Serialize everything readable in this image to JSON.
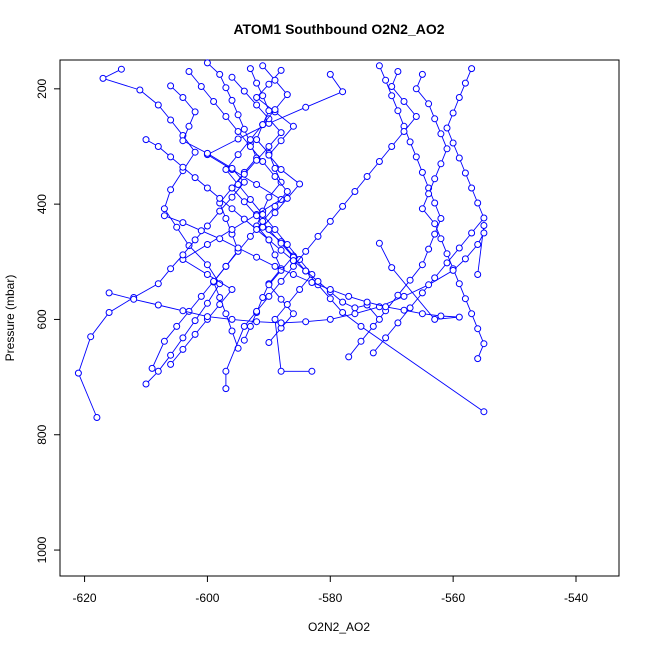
{
  "chart_data": {
    "type": "line",
    "title": "ATOM1 Southbound O2N2_AO2",
    "xlabel": "O2N2_AO2",
    "ylabel": "Pressure (mbar)",
    "xlim": [
      -624,
      -533
    ],
    "ylim": [
      1045,
      150
    ],
    "y_reversed": true,
    "x_ticks": [
      -620,
      -600,
      -580,
      -560,
      -540
    ],
    "y_ticks": [
      200,
      400,
      600,
      800,
      1000
    ],
    "grid": false,
    "series_color": "#0000ff",
    "series": [
      {
        "x": [
          -614,
          -617,
          -611,
          -608,
          -606,
          -604,
          -602,
          -604,
          -606,
          -607,
          -605,
          -603,
          -600,
          -598,
          -600,
          -602,
          -604,
          -606,
          -608,
          -610
        ],
        "y": [
          166,
          182,
          202,
          228,
          254,
          281,
          310,
          342,
          375,
          408,
          440,
          472,
          505,
          538,
          572,
          602,
          632,
          662,
          690,
          712
        ]
      },
      {
        "x": [
          -600,
          -598,
          -597,
          -596,
          -595,
          -594,
          -593,
          -592,
          -594,
          -596,
          -598,
          -597,
          -596,
          -595,
          -597,
          -599,
          -598,
          -597,
          -596,
          -595
        ],
        "y": [
          155,
          175,
          198,
          220,
          245,
          270,
          295,
          320,
          345,
          372,
          398,
          425,
          452,
          480,
          508,
          535,
          562,
          590,
          620,
          650
        ]
      },
      {
        "x": [
          -593,
          -592,
          -591,
          -590,
          -591,
          -592,
          -590,
          -589,
          -588,
          -590,
          -591,
          -592,
          -590,
          -589,
          -588,
          -590,
          -591,
          -592,
          -593,
          -594
        ],
        "y": [
          165,
          190,
          212,
          238,
          262,
          288,
          312,
          338,
          362,
          388,
          412,
          438,
          462,
          488,
          512,
          538,
          562,
          588,
          612,
          636
        ]
      },
      {
        "x": [
          -588,
          -590,
          -592,
          -589,
          -586,
          -588,
          -590,
          -588,
          -585,
          -587,
          -589,
          -591,
          -588,
          -586,
          -588,
          -590,
          -588,
          -586,
          -588,
          -590
        ],
        "y": [
          168,
          192,
          215,
          240,
          265,
          290,
          315,
          340,
          365,
          390,
          415,
          440,
          465,
          490,
          515,
          540,
          565,
          590,
          615,
          640
        ]
      },
      {
        "x": [
          -580,
          -578,
          -584,
          -590,
          -595,
          -600,
          -596,
          -592,
          -588,
          -592,
          -596,
          -600,
          -604,
          -600,
          -596,
          -598,
          -600,
          -602,
          -604,
          -606
        ],
        "y": [
          175,
          205,
          232,
          260,
          287,
          314,
          340,
          366,
          392,
          418,
          444,
          470,
          496,
          522,
          548,
          574,
          600,
          626,
          652,
          678
        ]
      },
      {
        "x": [
          -572,
          -571,
          -570,
          -569,
          -568,
          -567,
          -566,
          -565,
          -564,
          -563,
          -562,
          -563,
          -564,
          -565,
          -567,
          -569,
          -571,
          -573,
          -575,
          -577
        ],
        "y": [
          160,
          185,
          212,
          238,
          265,
          292,
          318,
          345,
          372,
          398,
          425,
          452,
          478,
          505,
          532,
          558,
          585,
          612,
          638,
          665
        ]
      },
      {
        "x": [
          -565,
          -566,
          -564,
          -563,
          -562,
          -561,
          -562,
          -563,
          -564,
          -565,
          -563,
          -562,
          -561,
          -560,
          -559,
          -558,
          -557,
          -556,
          -555,
          -556
        ],
        "y": [
          175,
          200,
          226,
          252,
          278,
          304,
          330,
          356,
          382,
          408,
          434,
          460,
          486,
          512,
          538,
          564,
          590,
          616,
          642,
          668
        ]
      },
      {
        "x": [
          -557,
          -558,
          -559,
          -560,
          -561,
          -560,
          -559,
          -558,
          -557,
          -556,
          -555,
          -557,
          -559,
          -561,
          -563,
          -565,
          -567,
          -569,
          -571,
          -573
        ],
        "y": [
          165,
          190,
          215,
          242,
          268,
          294,
          320,
          346,
          372,
          398,
          424,
          450,
          476,
          502,
          528,
          554,
          580,
          606,
          632,
          658
        ]
      },
      {
        "x": [
          -606,
          -604,
          -602,
          -603,
          -604,
          -600,
          -596,
          -594,
          -596,
          -598,
          -600,
          -602,
          -604,
          -606,
          -608,
          -612,
          -616,
          -619,
          -621,
          -618
        ],
        "y": [
          195,
          215,
          240,
          265,
          290,
          312,
          338,
          362,
          388,
          412,
          438,
          462,
          488,
          512,
          538,
          562,
          588,
          630,
          693,
          770
        ]
      },
      {
        "x": [
          -596,
          -594,
          -592,
          -590,
          -588,
          -590,
          -592,
          -594,
          -596,
          -594,
          -592,
          -590,
          -588,
          -586,
          -584,
          -582,
          -580,
          -578,
          -575,
          -555
        ],
        "y": [
          180,
          204,
          228,
          252,
          276,
          300,
          324,
          348,
          372,
          396,
          420,
          444,
          468,
          492,
          516,
          540,
          564,
          588,
          612,
          760
        ]
      },
      {
        "x": [
          -603,
          -601,
          -599,
          -597,
          -595,
          -593,
          -591,
          -589,
          -587,
          -589,
          -591,
          -593,
          -595,
          -597,
          -599,
          -601,
          -603,
          -605,
          -607,
          -609
        ],
        "y": [
          170,
          196,
          222,
          248,
          274,
          300,
          326,
          352,
          378,
          404,
          430,
          456,
          482,
          508,
          534,
          560,
          586,
          612,
          638,
          685
        ]
      },
      {
        "x": [
          -591,
          -589,
          -587,
          -589,
          -591,
          -593,
          -595,
          -597,
          -595,
          -593,
          -591,
          -589,
          -587,
          -585,
          -583,
          -585,
          -587,
          -589,
          -588,
          -583
        ],
        "y": [
          160,
          185,
          210,
          236,
          262,
          288,
          314,
          340,
          366,
          392,
          418,
          444,
          470,
          496,
          522,
          548,
          574,
          600,
          690,
          690
        ]
      },
      {
        "x": [
          -569,
          -570,
          -568,
          -566,
          -568,
          -570,
          -572,
          -574,
          -576,
          -578,
          -580,
          -582,
          -584,
          -586,
          -588,
          -590,
          -592,
          -594,
          -597,
          -597
        ],
        "y": [
          170,
          196,
          222,
          248,
          274,
          300,
          326,
          352,
          378,
          404,
          430,
          456,
          482,
          508,
          534,
          560,
          586,
          612,
          690,
          720
        ]
      },
      {
        "x": [
          -610,
          -608,
          -606,
          -604,
          -602,
          -600,
          -598,
          -596,
          -594,
          -592,
          -590,
          -588,
          -586,
          -584,
          -582,
          -580,
          -578,
          -576,
          -574,
          -572
        ],
        "y": [
          288,
          300,
          318,
          336,
          354,
          372,
          390,
          408,
          426,
          444,
          462,
          480,
          498,
          516,
          534,
          552,
          570,
          580,
          575,
          600
        ]
      },
      {
        "x": [
          -616,
          -612,
          -608,
          -604,
          -600,
          -596,
          -592,
          -588,
          -584,
          -580,
          -576,
          -572,
          -568,
          -564,
          -560,
          -558,
          -556,
          -555,
          -555,
          -556
        ],
        "y": [
          554,
          565,
          575,
          585,
          595,
          600,
          604,
          606,
          604,
          600,
          590,
          578,
          560,
          540,
          515,
          495,
          470,
          450,
          437,
          522
        ]
      },
      {
        "x": [
          -607,
          -604,
          -601,
          -598,
          -595,
          -592,
          -589,
          -586,
          -583,
          -580,
          -577,
          -574,
          -571,
          -568,
          -565,
          -562,
          -559,
          -563,
          -570,
          -572
        ],
        "y": [
          420,
          432,
          446,
          460,
          476,
          492,
          508,
          522,
          536,
          548,
          560,
          570,
          578,
          584,
          590,
          594,
          596,
          600,
          510,
          468
        ]
      }
    ]
  }
}
